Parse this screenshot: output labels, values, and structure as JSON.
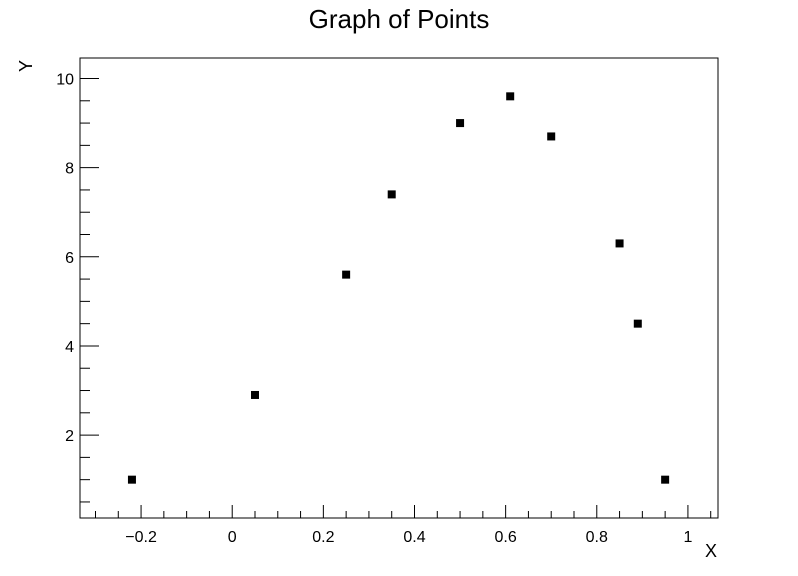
{
  "chart_data": {
    "type": "scatter",
    "title": "Graph of Points",
    "xlabel": "X",
    "ylabel": "Y",
    "xlim": [
      -0.334,
      1.066
    ],
    "ylim": [
      0.14,
      10.46
    ],
    "x_ticks": [
      -0.2,
      0,
      0.2,
      0.4,
      0.6,
      0.8,
      1
    ],
    "x_tick_labels": [
      "−0.2",
      "0",
      "0.2",
      "0.4",
      "0.6",
      "0.8",
      "1"
    ],
    "y_ticks": [
      2,
      4,
      6,
      8,
      10
    ],
    "y_tick_labels": [
      "2",
      "4",
      "6",
      "8",
      "10"
    ],
    "grid": false,
    "marker": "square",
    "marker_color": "#000000",
    "points": [
      {
        "x": -0.22,
        "y": 1.0
      },
      {
        "x": 0.05,
        "y": 2.9
      },
      {
        "x": 0.25,
        "y": 5.6
      },
      {
        "x": 0.35,
        "y": 7.4
      },
      {
        "x": 0.5,
        "y": 9.0
      },
      {
        "x": 0.61,
        "y": 9.6
      },
      {
        "x": 0.7,
        "y": 8.7
      },
      {
        "x": 0.85,
        "y": 6.3
      },
      {
        "x": 0.89,
        "y": 4.5
      },
      {
        "x": 0.95,
        "y": 1.0
      }
    ]
  }
}
